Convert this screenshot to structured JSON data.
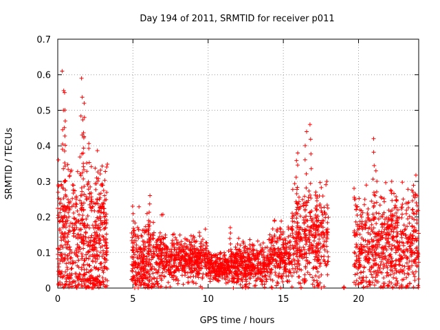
{
  "chart_data": {
    "type": "scatter",
    "title": "Day 194 of 2011, SRMTID for receiver p011",
    "xlabel": "GPS time / hours",
    "ylabel": "SRMTID / TECUs",
    "xlim": [
      0,
      24
    ],
    "ylim": [
      0,
      0.7
    ],
    "x_ticks": [
      0,
      5,
      10,
      15,
      20
    ],
    "x_tick_labels": [
      "0",
      "5",
      "10",
      "15",
      "20"
    ],
    "y_ticks": [
      0,
      0.1,
      0.2,
      0.3,
      0.4,
      0.5,
      0.6,
      0.7
    ],
    "y_tick_labels": [
      "0",
      "0.1",
      "0.2",
      "0.3",
      "0.4",
      "0.5",
      "0.6",
      "0.7"
    ],
    "grid": true,
    "marker": "+",
    "series_color": "#ff0000",
    "segments": [
      {
        "x": [
          0.0,
          3.3
        ],
        "mean": 0.14,
        "spread": 0.11,
        "count": 620
      },
      {
        "x": [
          4.9,
          7.0
        ],
        "mean": 0.08,
        "spread": 0.05,
        "count": 330
      },
      {
        "x": [
          7.0,
          10.0
        ],
        "mean": 0.08,
        "spread": 0.03,
        "count": 420
      },
      {
        "x": [
          10.0,
          11.5
        ],
        "mean": 0.06,
        "spread": 0.02,
        "count": 220
      },
      {
        "x": [
          11.5,
          14.0
        ],
        "mean": 0.065,
        "spread": 0.03,
        "count": 380
      },
      {
        "x": [
          14.0,
          15.5
        ],
        "mean": 0.09,
        "spread": 0.04,
        "count": 220
      },
      {
        "x": [
          15.5,
          18.0
        ],
        "mean": 0.14,
        "spread": 0.07,
        "count": 360
      },
      {
        "x": [
          19.0,
          19.05
        ],
        "mean": 0.0,
        "spread": 0.004,
        "count": 6
      },
      {
        "x": [
          19.7,
          24.0
        ],
        "mean": 0.12,
        "spread": 0.07,
        "count": 640
      }
    ],
    "peaks": [
      {
        "x": 0.35,
        "y": 0.61
      },
      {
        "x": 0.45,
        "y": 0.55
      },
      {
        "x": 0.5,
        "y": 0.47
      },
      {
        "x": 1.6,
        "y": 0.59
      },
      {
        "x": 1.7,
        "y": 0.52
      },
      {
        "x": 1.75,
        "y": 0.48
      },
      {
        "x": 3.1,
        "y": 0.26
      },
      {
        "x": 5.0,
        "y": 0.23
      },
      {
        "x": 6.1,
        "y": 0.26
      },
      {
        "x": 11.5,
        "y": 0.17
      },
      {
        "x": 15.9,
        "y": 0.38
      },
      {
        "x": 16.5,
        "y": 0.44
      },
      {
        "x": 16.8,
        "y": 0.46
      },
      {
        "x": 17.2,
        "y": 0.27
      },
      {
        "x": 21.0,
        "y": 0.42
      },
      {
        "x": 21.2,
        "y": 0.33
      },
      {
        "x": 22.2,
        "y": 0.3
      },
      {
        "x": 23.6,
        "y": 0.27
      }
    ]
  }
}
